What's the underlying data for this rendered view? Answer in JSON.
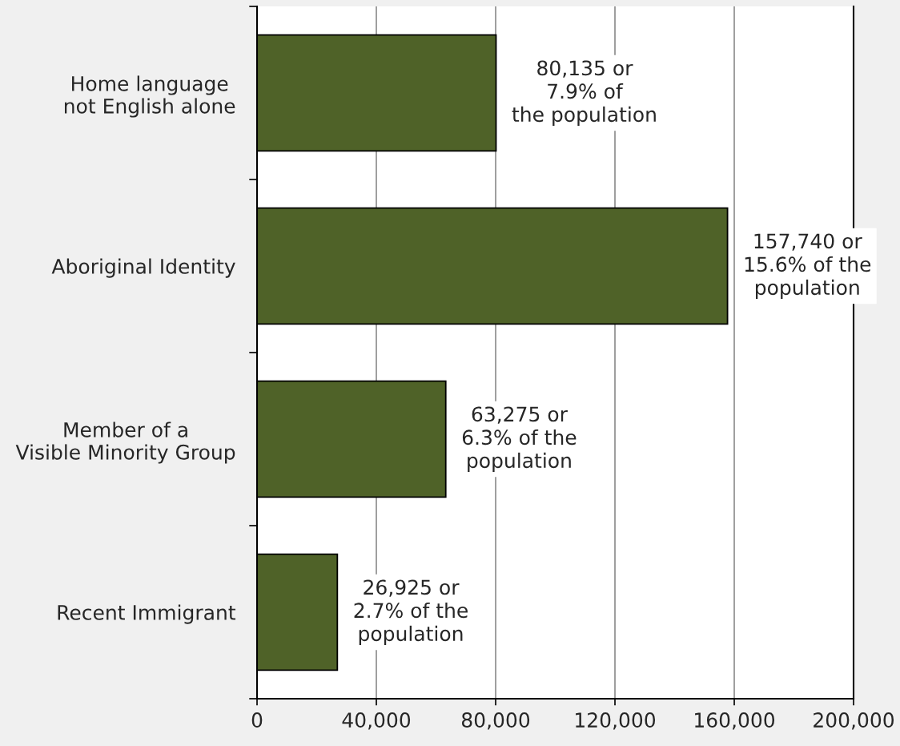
{
  "chart_data": {
    "type": "bar",
    "orientation": "horizontal",
    "categories": [
      "Home language\nnot English alone",
      "Aboriginal Identity",
      "Member of a\nVisible Minority Group",
      "Recent Immigrant"
    ],
    "values": [
      80135,
      157740,
      63275,
      26925
    ],
    "color": "#4f6228",
    "value_labels": [
      "80,135 or\n7.9% of\nthe population",
      "157,740 or\n15.6% of the\npopulation",
      "63,275 or\n6.3% of the\npopulation",
      "26,925 or\n2.7% of the\npopulation"
    ],
    "xlim": [
      0,
      200000
    ],
    "xticks": [
      0,
      {
        "value": 40000,
        "label": "40,000"
      },
      {
        "value": 80000,
        "label": "80,000"
      },
      {
        "value": 120000,
        "label": "120,000"
      },
      {
        "value": 160000,
        "label": "160,000"
      },
      {
        "value": 200000,
        "label": "200,000"
      }
    ],
    "grid": "x"
  }
}
